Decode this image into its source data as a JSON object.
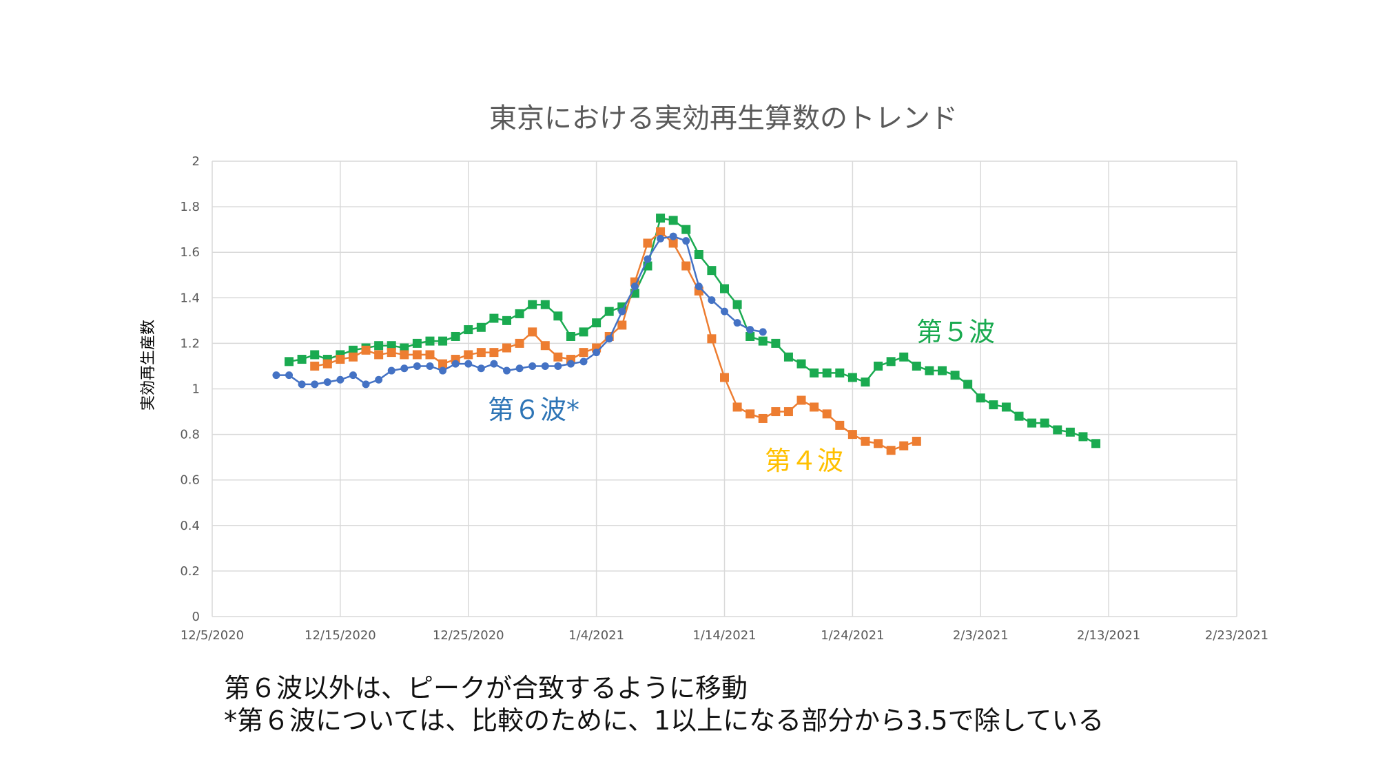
{
  "chart_data": {
    "type": "line",
    "title": "東京における実効再生算数のトレンド",
    "xlabel": "",
    "ylabel": "実効再生産数",
    "x_tick_labels": [
      "12/5/2020",
      "12/15/2020",
      "12/25/2020",
      "1/4/2021",
      "1/14/2021",
      "1/24/2021",
      "2/3/2021",
      "2/13/2021",
      "2/23/2021"
    ],
    "x_tick_offsets_days": [
      0,
      10,
      20,
      30,
      40,
      50,
      60,
      70,
      80
    ],
    "xlim_days": [
      0,
      80
    ],
    "y_tick_labels": [
      "0",
      "0.2",
      "0.4",
      "0.6",
      "0.8",
      "1",
      "1.2",
      "1.4",
      "1.6",
      "1.8",
      "2"
    ],
    "ylim": [
      0,
      2
    ],
    "grid": true,
    "series": [
      {
        "name": "第５波",
        "color": "#1aaa50",
        "marker": "square",
        "start_day": 6,
        "values": [
          1.12,
          1.13,
          1.15,
          1.13,
          1.15,
          1.17,
          1.18,
          1.19,
          1.19,
          1.18,
          1.2,
          1.21,
          1.21,
          1.23,
          1.26,
          1.27,
          1.31,
          1.3,
          1.33,
          1.37,
          1.37,
          1.32,
          1.23,
          1.25,
          1.29,
          1.34,
          1.36,
          1.42,
          1.54,
          1.75,
          1.74,
          1.7,
          1.59,
          1.52,
          1.44,
          1.37,
          1.23,
          1.21,
          1.2,
          1.14,
          1.11,
          1.07,
          1.07,
          1.07,
          1.05,
          1.03,
          1.1,
          1.12,
          1.14,
          1.1,
          1.08,
          1.08,
          1.06,
          1.02,
          0.96,
          0.93,
          0.92,
          0.88,
          0.85,
          0.85,
          0.82,
          0.81,
          0.79,
          0.76
        ]
      },
      {
        "name": "第４波",
        "color": "#ed7d31",
        "marker": "square",
        "start_day": 8,
        "values": [
          1.1,
          1.11,
          1.13,
          1.14,
          1.17,
          1.15,
          1.16,
          1.15,
          1.15,
          1.15,
          1.11,
          1.13,
          1.15,
          1.16,
          1.16,
          1.18,
          1.2,
          1.25,
          1.19,
          1.14,
          1.13,
          1.16,
          1.18,
          1.23,
          1.28,
          1.47,
          1.64,
          1.69,
          1.64,
          1.54,
          1.43,
          1.22,
          1.05,
          0.92,
          0.89,
          0.87,
          0.9,
          0.9,
          0.95,
          0.92,
          0.89,
          0.84,
          0.8,
          0.77,
          0.76,
          0.73,
          0.75,
          0.77
        ]
      },
      {
        "name": "第６波*",
        "color": "#4472c4",
        "marker": "circle",
        "start_day": 5,
        "values": [
          1.06,
          1.06,
          1.02,
          1.02,
          1.03,
          1.04,
          1.06,
          1.02,
          1.04,
          1.08,
          1.09,
          1.1,
          1.1,
          1.08,
          1.11,
          1.11,
          1.09,
          1.11,
          1.08,
          1.09,
          1.1,
          1.1,
          1.1,
          1.11,
          1.12,
          1.16,
          1.22,
          1.34,
          1.45,
          1.57,
          1.66,
          1.67,
          1.65,
          1.45,
          1.39,
          1.34,
          1.29,
          1.26,
          1.25
        ]
      }
    ],
    "annotations": [
      {
        "text": "第５波",
        "color": "#1aaa50"
      },
      {
        "text": "第６波*",
        "color": "#2e75b6"
      },
      {
        "text": "第４波",
        "color": "#ffc000"
      }
    ]
  },
  "notes": {
    "line1": "第６波以外は、ピークが合致するように移動",
    "line2": "*第６波については、比較のために、1以上になる部分から3.5で除している"
  }
}
